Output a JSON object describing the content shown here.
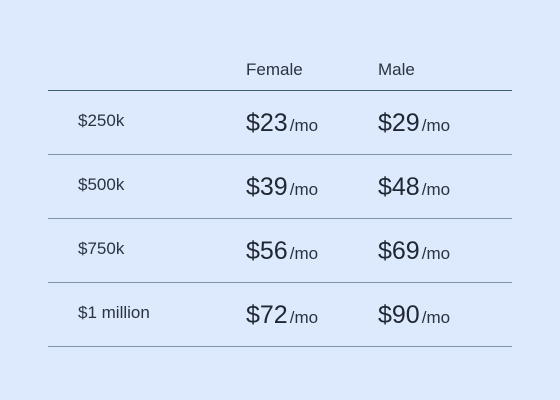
{
  "table": {
    "headers": {
      "coverage": "",
      "female": "Female",
      "male": "Male"
    },
    "unit": "/mo",
    "rows": [
      {
        "coverage": "$250k",
        "female": "$23",
        "male": "$29"
      },
      {
        "coverage": "$500k",
        "female": "$39",
        "male": "$48"
      },
      {
        "coverage": "$750k",
        "female": "$56",
        "male": "$69"
      },
      {
        "coverage": "$1 million",
        "female": "$72",
        "male": "$90"
      }
    ]
  },
  "colors": {
    "background": "#dde9fc",
    "text": "#1f2733",
    "header_rule": "#3f5e72",
    "row_rule": "#7f97a8"
  }
}
